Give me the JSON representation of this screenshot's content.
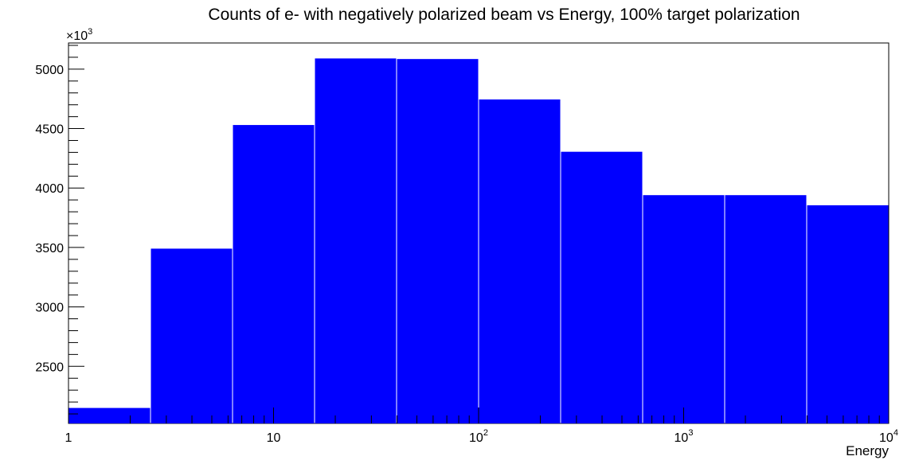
{
  "chart_data": {
    "type": "bar",
    "title": "Counts of e- with negatively polarized beam vs Energy, 100% target polarization",
    "xlabel": "Energy",
    "ylabel": "",
    "x_scale": "log",
    "xlim": [
      1,
      10000
    ],
    "ylim": [
      2020,
      5220
    ],
    "y_multiplier_label": "×10",
    "y_multiplier_exponent": "3",
    "bin_edges": [
      1,
      2.512,
      6.31,
      15.85,
      39.81,
      100,
      251.2,
      631,
      1585,
      3981,
      10000
    ],
    "values": [
      2150,
      3490,
      4530,
      5090,
      5085,
      4745,
      4305,
      3940,
      3940,
      3855
    ],
    "y_ticks": [
      2500,
      3000,
      3500,
      4000,
      4500,
      5000
    ],
    "y_tick_labels": [
      "2500",
      "3000",
      "3500",
      "4000",
      "4500",
      "5000"
    ],
    "x_ticks": [
      {
        "value": 1,
        "base": "1",
        "exp": ""
      },
      {
        "value": 10,
        "base": "10",
        "exp": ""
      },
      {
        "value": 100,
        "base": "10",
        "exp": "2"
      },
      {
        "value": 1000,
        "base": "10",
        "exp": "3"
      },
      {
        "value": 10000,
        "base": "10",
        "exp": "4"
      }
    ],
    "bar_color": "#0000ff",
    "grid": false,
    "legend": "none"
  }
}
